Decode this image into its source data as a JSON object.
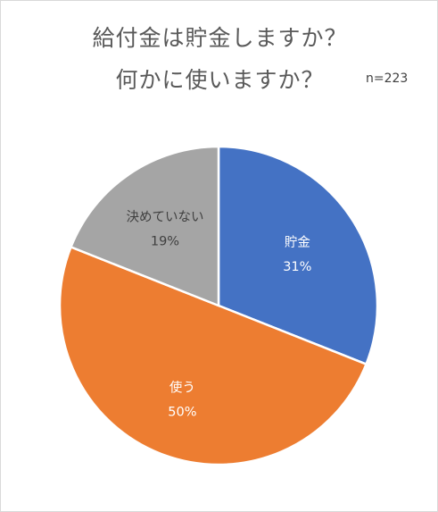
{
  "title_line1": "給付金は貯金しますか？",
  "title_line2": "何かに使いますか？",
  "sample_size": "n=223",
  "chart_data": {
    "type": "pie",
    "title": "給付金は貯金しますか？ 何かに使いますか？",
    "slices": [
      {
        "label": "貯金",
        "value": 31,
        "value_label": "31%",
        "color": "#4472c4"
      },
      {
        "label": "使う",
        "value": 50,
        "value_label": "50%",
        "color": "#ed7d31"
      },
      {
        "label": "決めていない",
        "value": 19,
        "value_label": "19%",
        "color": "#a5a5a5"
      }
    ],
    "start": "12 o'clock, clockwise",
    "legend": "none",
    "data_labels": "inside"
  }
}
